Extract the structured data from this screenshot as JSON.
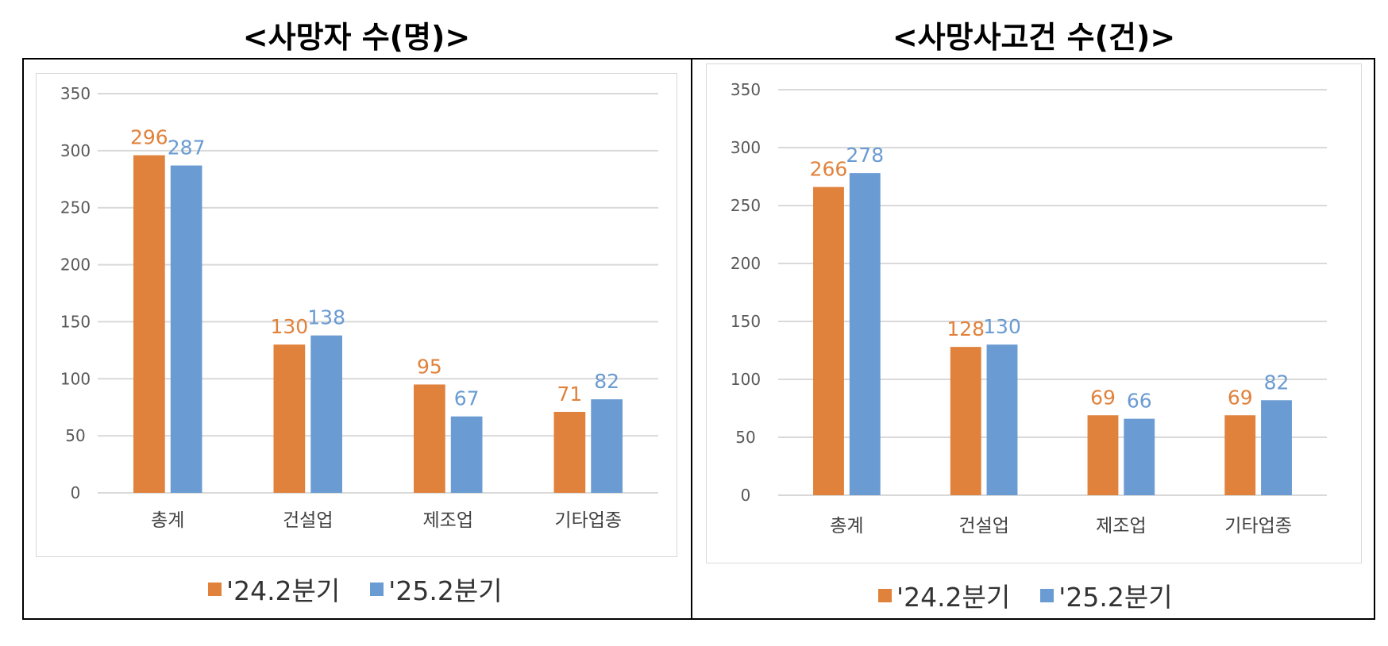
{
  "chart_data": [
    {
      "type": "bar",
      "title": "<사망자 수(명)>",
      "categories": [
        "총계",
        "건설업",
        "제조업",
        "기타업종"
      ],
      "series": [
        {
          "name": "'24.2분기",
          "color": "#E0823C",
          "values": [
            296,
            130,
            95,
            71
          ]
        },
        {
          "name": "'25.2분기",
          "color": "#6A9BD2",
          "values": [
            287,
            138,
            67,
            82
          ]
        }
      ],
      "xlabel": "",
      "ylabel": "",
      "ylim": [
        0,
        350
      ],
      "yticks": [
        "0",
        "50",
        "100",
        "150",
        "200",
        "250",
        "300",
        "350"
      ],
      "grid": true,
      "legend": "bottom"
    },
    {
      "type": "bar",
      "title": "<사망사고건 수(건)>",
      "categories": [
        "총계",
        "건설업",
        "제조업",
        "기타업종"
      ],
      "series": [
        {
          "name": "'24.2분기",
          "color": "#E0823C",
          "values": [
            266,
            128,
            69,
            69
          ]
        },
        {
          "name": "'25.2분기",
          "color": "#6A9BD2",
          "values": [
            278,
            130,
            66,
            82
          ]
        }
      ],
      "xlabel": "",
      "ylabel": "",
      "ylim": [
        0,
        350
      ],
      "yticks": [
        "0",
        "50",
        "100",
        "150",
        "200",
        "250",
        "300",
        "350"
      ],
      "grid": true,
      "legend": "bottom"
    }
  ]
}
